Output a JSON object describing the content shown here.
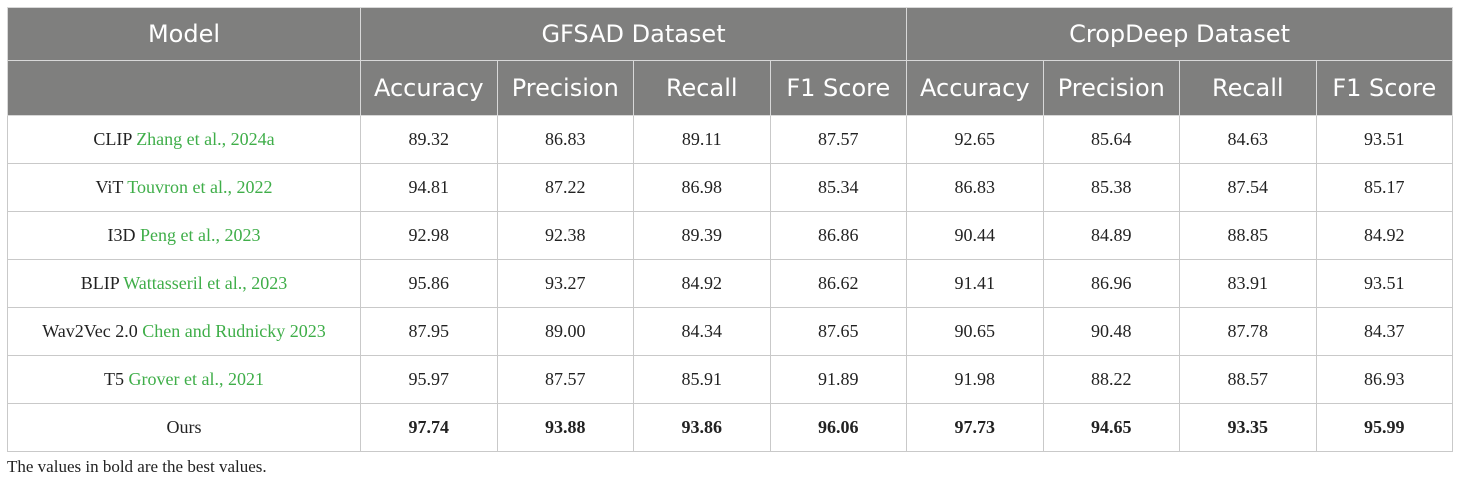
{
  "header": {
    "model": "Model",
    "groups": [
      "GFSAD Dataset",
      "CropDeep Dataset"
    ],
    "metrics": [
      "Accuracy",
      "Precision",
      "Recall",
      "F1 Score",
      "Accuracy",
      "Precision",
      "Recall",
      "F1 Score"
    ]
  },
  "rows": [
    {
      "model": "CLIP",
      "cite": "Zhang et al., 2024a",
      "values": [
        "89.32",
        "86.83",
        "89.11",
        "87.57",
        "92.65",
        "85.64",
        "84.63",
        "93.51"
      ]
    },
    {
      "model": "ViT",
      "cite": "Touvron et al., 2022",
      "values": [
        "94.81",
        "87.22",
        "86.98",
        "85.34",
        "86.83",
        "85.38",
        "87.54",
        "85.17"
      ]
    },
    {
      "model": "I3D",
      "cite": "Peng et al., 2023",
      "values": [
        "92.98",
        "92.38",
        "89.39",
        "86.86",
        "90.44",
        "84.89",
        "88.85",
        "84.92"
      ]
    },
    {
      "model": "BLIP",
      "cite": "Wattasseril et al., 2023",
      "values": [
        "95.86",
        "93.27",
        "84.92",
        "86.62",
        "91.41",
        "86.96",
        "83.91",
        "93.51"
      ]
    },
    {
      "model": "Wav2Vec 2.0",
      "cite": "Chen and Rudnicky 2023",
      "values": [
        "87.95",
        "89.00",
        "84.34",
        "87.65",
        "90.65",
        "90.48",
        "87.78",
        "84.37"
      ]
    },
    {
      "model": "T5",
      "cite": "Grover et al., 2021",
      "values": [
        "95.97",
        "87.57",
        "85.91",
        "91.89",
        "91.98",
        "88.22",
        "88.57",
        "86.93"
      ]
    },
    {
      "model": "Ours",
      "cite": "",
      "values": [
        "97.74",
        "93.88",
        "93.86",
        "96.06",
        "97.73",
        "94.65",
        "93.35",
        "95.99"
      ]
    }
  ],
  "footnote": "The values in bold are the best values.",
  "colors": {
    "header_bg": "#7f7f7e",
    "citation": "#3fae49"
  }
}
